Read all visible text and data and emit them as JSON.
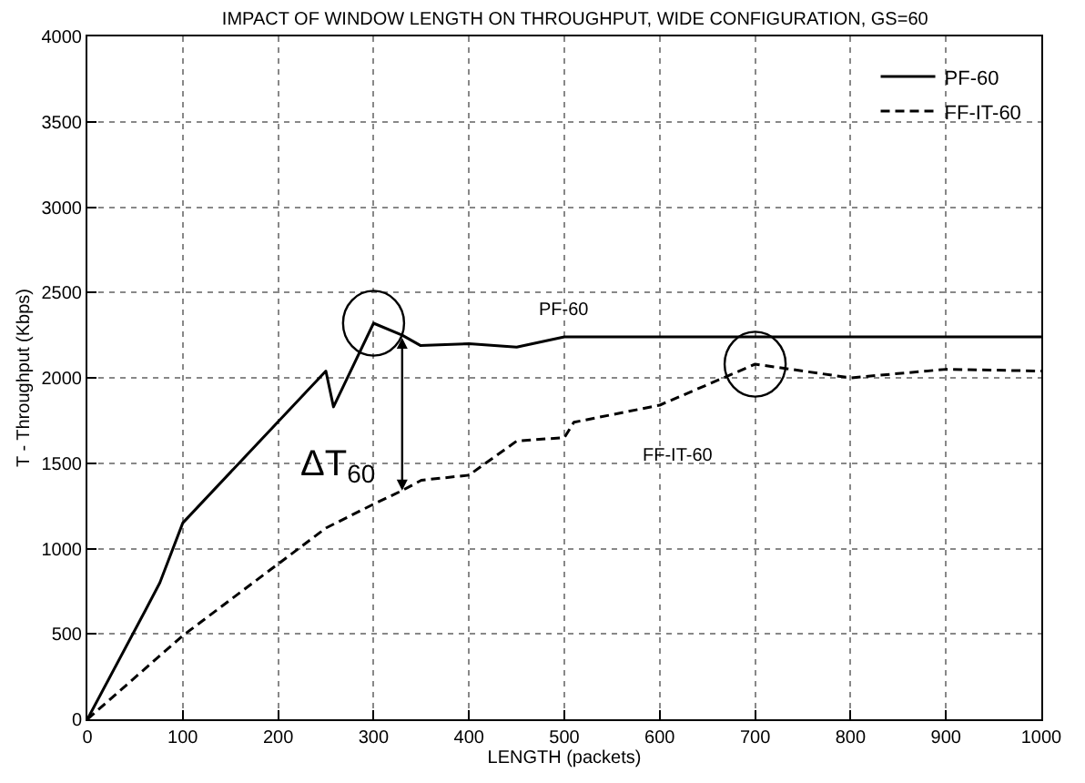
{
  "chart_data": {
    "type": "line",
    "title": "IMPACT OF WINDOW LENGTH ON THROUGHPUT, WIDE CONFIGURATION, GS=60",
    "xlabel": "LENGTH (packets)",
    "ylabel": "T - Throughput (Kbps)",
    "series": [
      {
        "name": "PF-60",
        "color": "#000000",
        "line_style": "solid",
        "x": [
          0,
          61,
          76,
          100,
          250,
          258,
          300,
          330,
          349,
          400,
          450,
          500,
          1000
        ],
        "values": [
          0,
          640,
          800,
          1150,
          2040,
          1830,
          2320,
          2250,
          2190,
          2200,
          2180,
          2240,
          2240
        ]
      },
      {
        "name": "FF-IT-60",
        "color": "#000000",
        "line_style": "dashed",
        "x": [
          0,
          100,
          250,
          300,
          330,
          350,
          400,
          450,
          500,
          510,
          600,
          700,
          800,
          900,
          1000
        ],
        "values": [
          0,
          490,
          1120,
          1260,
          1340,
          1400,
          1430,
          1630,
          1650,
          1740,
          1840,
          2080,
          2000,
          2050,
          2040
        ]
      }
    ],
    "annotations": [
      "PF-60",
      "FF-IT-60",
      {
        "text": "ΔT$_{60}$",
        "x": 330,
        "y": 2250
      }
    ],
    "xlim": [
      0,
      1000
    ],
    "xticks": [
      0,
      100,
      200,
      300,
      400,
      500,
      600,
      700,
      800,
      900,
      1000
    ],
    "ylim": [
      0,
      4000
    ],
    "yticks": [
      0,
      500,
      1000,
      1500,
      2000,
      2500,
      3000,
      3500,
      4000
    ],
    "grid": true,
    "legend": "top right",
    "marker": "none"
  }
}
